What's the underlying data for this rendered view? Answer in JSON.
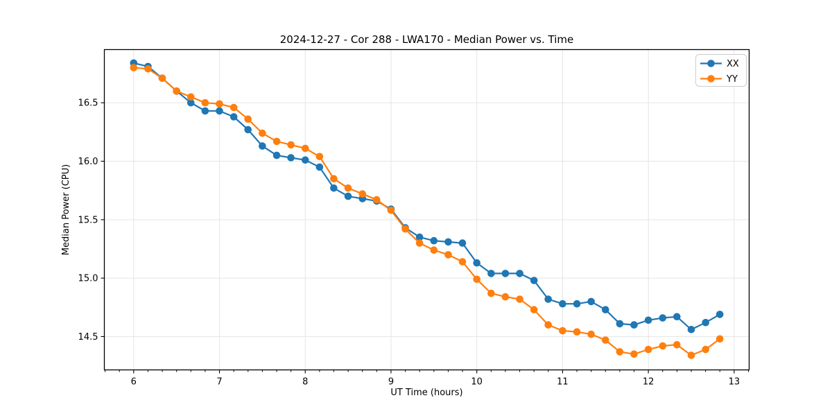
{
  "figure": {
    "background": "#ffffff"
  },
  "chart_data": {
    "type": "line",
    "title": "2024-12-27 - Cor 288 - LWA170 - Median Power vs. Time",
    "xlabel": "UT Time (hours)",
    "ylabel": "Median Power (CPU)",
    "xlim": [
      5.658,
      13.175
    ],
    "ylim": [
      14.215,
      16.955
    ],
    "x_major_ticks": [
      6,
      7,
      8,
      9,
      10,
      11,
      12,
      13
    ],
    "x_tick_labels": [
      "6",
      "7",
      "8",
      "9",
      "10",
      "11",
      "12",
      "13"
    ],
    "x_minor_tick_interval_hours": 0.1666667,
    "y_major_ticks": [
      14.5,
      15.0,
      15.5,
      16.0,
      16.5
    ],
    "y_tick_labels": [
      "14.5",
      "15.0",
      "15.5",
      "16.0",
      "16.5"
    ],
    "grid": true,
    "legend_position": "upper right",
    "x": [
      6.0,
      6.167,
      6.333,
      6.5,
      6.667,
      6.833,
      7.0,
      7.167,
      7.333,
      7.5,
      7.667,
      7.833,
      8.0,
      8.167,
      8.333,
      8.5,
      8.667,
      8.833,
      9.0,
      9.167,
      9.333,
      9.5,
      9.667,
      9.833,
      10.0,
      10.167,
      10.333,
      10.5,
      10.667,
      10.833,
      11.0,
      11.167,
      11.333,
      11.5,
      11.667,
      11.833,
      12.0,
      12.167,
      12.333,
      12.5,
      12.667,
      12.833
    ],
    "series": [
      {
        "name": "XX",
        "color": "#1f77b4",
        "marker": "circle",
        "values": [
          16.84,
          16.81,
          16.71,
          16.6,
          16.5,
          16.43,
          16.43,
          16.38,
          16.27,
          16.13,
          16.05,
          16.03,
          16.01,
          15.95,
          15.77,
          15.7,
          15.68,
          15.66,
          15.59,
          15.43,
          15.35,
          15.32,
          15.31,
          15.3,
          15.13,
          15.04,
          15.04,
          15.04,
          14.98,
          14.82,
          14.78,
          14.78,
          14.8,
          14.73,
          14.61,
          14.6,
          14.64,
          14.66,
          14.67,
          14.56,
          14.62,
          14.69
        ]
      },
      {
        "name": "YY",
        "color": "#ff7f0e",
        "marker": "circle",
        "values": [
          16.8,
          16.79,
          16.71,
          16.6,
          16.55,
          16.5,
          16.49,
          16.46,
          16.36,
          16.24,
          16.17,
          16.14,
          16.11,
          16.04,
          15.85,
          15.77,
          15.72,
          15.67,
          15.58,
          15.42,
          15.3,
          15.24,
          15.2,
          15.14,
          14.99,
          14.87,
          14.84,
          14.82,
          14.73,
          14.6,
          14.55,
          14.54,
          14.52,
          14.47,
          14.37,
          14.35,
          14.39,
          14.42,
          14.43,
          14.34,
          14.39,
          14.48
        ]
      }
    ]
  }
}
